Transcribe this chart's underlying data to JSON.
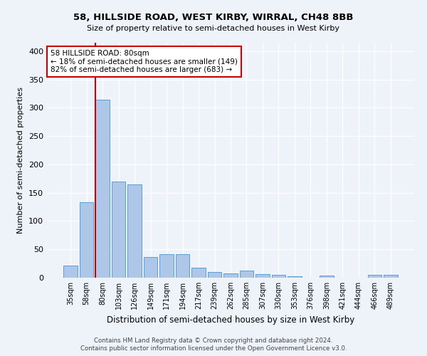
{
  "title1": "58, HILLSIDE ROAD, WEST KIRBY, WIRRAL, CH48 8BB",
  "title2": "Size of property relative to semi-detached houses in West Kirby",
  "xlabel": "Distribution of semi-detached houses by size in West Kirby",
  "ylabel": "Number of semi-detached properties",
  "categories": [
    "35sqm",
    "58sqm",
    "80sqm",
    "103sqm",
    "126sqm",
    "149sqm",
    "171sqm",
    "194sqm",
    "217sqm",
    "239sqm",
    "262sqm",
    "285sqm",
    "307sqm",
    "330sqm",
    "353sqm",
    "376sqm",
    "398sqm",
    "421sqm",
    "444sqm",
    "466sqm",
    "489sqm"
  ],
  "values": [
    22,
    133,
    315,
    170,
    165,
    37,
    42,
    42,
    18,
    10,
    8,
    13,
    6,
    5,
    3,
    0,
    4,
    0,
    0,
    5,
    5
  ],
  "bar_color": "#aec6e8",
  "bar_edge_color": "#5a9fd4",
  "highlight_index": 2,
  "highlight_color": "#cc0000",
  "annotation_text": "58 HILLSIDE ROAD: 80sqm\n← 18% of semi-detached houses are smaller (149)\n82% of semi-detached houses are larger (683) →",
  "annotation_box_color": "#ffffff",
  "annotation_box_edge": "#cc0000",
  "ylim": [
    0,
    415
  ],
  "yticks": [
    0,
    50,
    100,
    150,
    200,
    250,
    300,
    350,
    400
  ],
  "footer1": "Contains HM Land Registry data © Crown copyright and database right 2024.",
  "footer2": "Contains public sector information licensed under the Open Government Licence v3.0.",
  "bg_color": "#eef2f9",
  "plot_bg_color": "#eef2f9"
}
